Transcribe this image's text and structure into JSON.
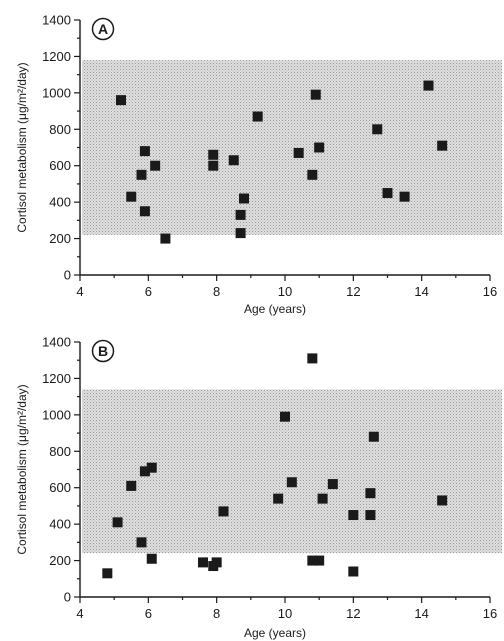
{
  "chart_data": [
    {
      "type": "scatter",
      "panel_label": "A",
      "xlabel": "Age (years)",
      "ylabel": "Cortisol metabolism (μg/m²/day)",
      "xlim": [
        4,
        16
      ],
      "ylim": [
        0,
        1400
      ],
      "x_ticks": [
        "4",
        "6",
        "8",
        "10",
        "12",
        "14",
        "16"
      ],
      "y_ticks": [
        "0",
        "200",
        "400",
        "600",
        "800",
        "1000",
        "1200",
        "1400"
      ],
      "reference_band": [
        220,
        1180
      ],
      "grid": false,
      "legend": "none",
      "marker": "square",
      "points": [
        {
          "x": 5.2,
          "y": 960
        },
        {
          "x": 5.5,
          "y": 430
        },
        {
          "x": 5.8,
          "y": 550
        },
        {
          "x": 5.9,
          "y": 680
        },
        {
          "x": 5.9,
          "y": 350
        },
        {
          "x": 6.2,
          "y": 600
        },
        {
          "x": 6.5,
          "y": 200
        },
        {
          "x": 7.9,
          "y": 600
        },
        {
          "x": 7.9,
          "y": 660
        },
        {
          "x": 8.5,
          "y": 630
        },
        {
          "x": 8.7,
          "y": 330
        },
        {
          "x": 8.8,
          "y": 420
        },
        {
          "x": 8.7,
          "y": 230
        },
        {
          "x": 9.2,
          "y": 870
        },
        {
          "x": 10.4,
          "y": 670
        },
        {
          "x": 10.8,
          "y": 550
        },
        {
          "x": 10.9,
          "y": 990
        },
        {
          "x": 11.0,
          "y": 700
        },
        {
          "x": 12.7,
          "y": 800
        },
        {
          "x": 13.0,
          "y": 450
        },
        {
          "x": 13.5,
          "y": 430
        },
        {
          "x": 14.2,
          "y": 1040
        },
        {
          "x": 14.6,
          "y": 710
        }
      ]
    },
    {
      "type": "scatter",
      "panel_label": "B",
      "xlabel": "Age (years)",
      "ylabel": "Cortisol metabolism (μg/m²/day)",
      "xlim": [
        4,
        16
      ],
      "ylim": [
        0,
        1400
      ],
      "x_ticks": [
        "4",
        "6",
        "8",
        "10",
        "12",
        "14",
        "16"
      ],
      "y_ticks": [
        "0",
        "200",
        "400",
        "600",
        "800",
        "1000",
        "1200",
        "1400"
      ],
      "reference_band": [
        240,
        1140
      ],
      "grid": false,
      "legend": "none",
      "marker": "square",
      "points": [
        {
          "x": 4.8,
          "y": 130
        },
        {
          "x": 5.1,
          "y": 410
        },
        {
          "x": 5.5,
          "y": 610
        },
        {
          "x": 5.9,
          "y": 690
        },
        {
          "x": 6.1,
          "y": 710
        },
        {
          "x": 5.8,
          "y": 300
        },
        {
          "x": 6.1,
          "y": 210
        },
        {
          "x": 7.6,
          "y": 190
        },
        {
          "x": 7.9,
          "y": 170
        },
        {
          "x": 8.0,
          "y": 190
        },
        {
          "x": 8.2,
          "y": 470
        },
        {
          "x": 9.8,
          "y": 540
        },
        {
          "x": 10.0,
          "y": 990
        },
        {
          "x": 10.2,
          "y": 630
        },
        {
          "x": 10.8,
          "y": 1310
        },
        {
          "x": 10.8,
          "y": 200
        },
        {
          "x": 11.0,
          "y": 200
        },
        {
          "x": 11.1,
          "y": 540
        },
        {
          "x": 11.4,
          "y": 620
        },
        {
          "x": 12.0,
          "y": 140
        },
        {
          "x": 12.0,
          "y": 450
        },
        {
          "x": 12.5,
          "y": 570
        },
        {
          "x": 12.5,
          "y": 450
        },
        {
          "x": 12.6,
          "y": 880
        },
        {
          "x": 14.6,
          "y": 530
        }
      ]
    }
  ],
  "colors": {
    "marker": "#1a1a1a",
    "band": "#c9c9c9",
    "axis": "#1a1a1a"
  }
}
